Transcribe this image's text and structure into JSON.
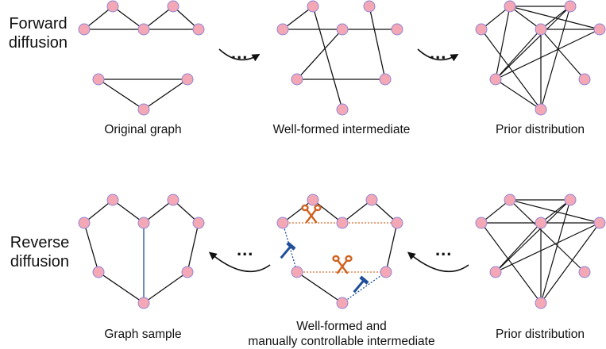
{
  "labels": {
    "forward": [
      "Forward",
      "diffusion"
    ],
    "reverse": [
      "Reverse",
      "diffusion"
    ]
  },
  "captions": {
    "original": "Original graph",
    "intermediate_top": "Well-formed intermediate",
    "prior_top": "Prior distribution",
    "sample": "Graph sample",
    "intermediate_bottom": [
      "Well-formed and",
      "manually controllable intermediate"
    ],
    "prior_bottom": "Prior distribution"
  },
  "ellipsis": "...",
  "colors": {
    "node_fill": "#f4a7b4",
    "node_stroke": "#8f86d8",
    "edge": "#111111",
    "added_edge": "#1f4f9a",
    "removed_edge": "#e06a2a",
    "scissors": "#d0621f",
    "hammer": "#1f4f9a"
  },
  "icons": [
    "scissors-icon",
    "hammer-icon",
    "curved-arrow-icon"
  ]
}
